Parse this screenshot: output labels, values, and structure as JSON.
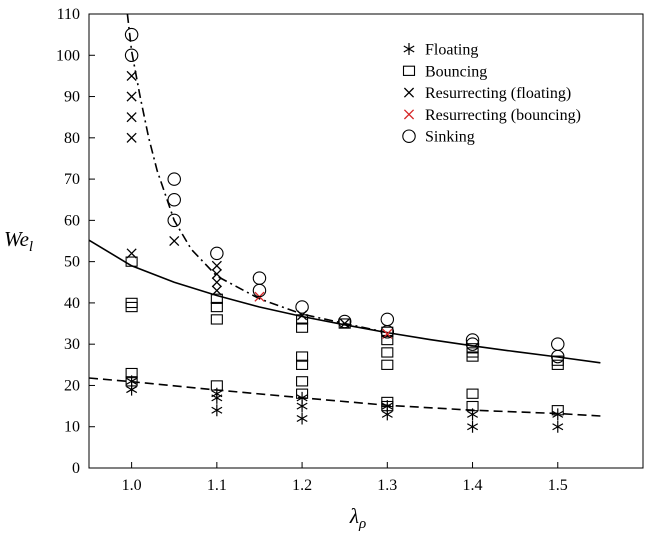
{
  "chart_data": {
    "type": "scatter",
    "xlim": [
      0.95,
      1.6
    ],
    "ylim": [
      0,
      110
    ],
    "x_ticks": [
      "1.0",
      "1.1",
      "1.2",
      "1.3",
      "1.4",
      "1.5"
    ],
    "y_ticks": [
      "0",
      "10",
      "20",
      "30",
      "40",
      "50",
      "60",
      "70",
      "80",
      "90",
      "100",
      "110"
    ],
    "xlabel": {
      "base": "λ",
      "sub": "ρ"
    },
    "ylabel": {
      "base": "We",
      "sub": "l"
    },
    "grid": false,
    "legend_position": "top-right",
    "series": [
      {
        "name": "Floating",
        "marker": "asterisk",
        "color": "#000000",
        "points": [
          [
            1.0,
            19
          ],
          [
            1.0,
            21
          ],
          [
            1.1,
            14
          ],
          [
            1.1,
            17
          ],
          [
            1.1,
            18
          ],
          [
            1.2,
            12
          ],
          [
            1.2,
            15
          ],
          [
            1.2,
            17
          ],
          [
            1.3,
            13
          ],
          [
            1.3,
            15
          ],
          [
            1.4,
            10
          ],
          [
            1.4,
            13
          ],
          [
            1.5,
            10
          ],
          [
            1.5,
            13
          ]
        ]
      },
      {
        "name": "Bouncing",
        "marker": "square",
        "color": "#000000",
        "points": [
          [
            1.0,
            21
          ],
          [
            1.0,
            23
          ],
          [
            1.0,
            39
          ],
          [
            1.0,
            40
          ],
          [
            1.0,
            50
          ],
          [
            1.1,
            20
          ],
          [
            1.1,
            36
          ],
          [
            1.1,
            39
          ],
          [
            1.1,
            41
          ],
          [
            1.2,
            18
          ],
          [
            1.2,
            21
          ],
          [
            1.2,
            25
          ],
          [
            1.2,
            27
          ],
          [
            1.2,
            34
          ],
          [
            1.2,
            36
          ],
          [
            1.25,
            35
          ],
          [
            1.3,
            15
          ],
          [
            1.3,
            16
          ],
          [
            1.3,
            25
          ],
          [
            1.3,
            28
          ],
          [
            1.3,
            31
          ],
          [
            1.3,
            33
          ],
          [
            1.4,
            15
          ],
          [
            1.4,
            18
          ],
          [
            1.4,
            27
          ],
          [
            1.4,
            28
          ],
          [
            1.4,
            29
          ],
          [
            1.5,
            14
          ],
          [
            1.5,
            25
          ],
          [
            1.5,
            26
          ]
        ]
      },
      {
        "name": "Resurrecting (floating)",
        "marker": "cross",
        "color": "#000000",
        "points": [
          [
            1.0,
            52
          ],
          [
            1.0,
            80
          ],
          [
            1.0,
            85
          ],
          [
            1.0,
            90
          ],
          [
            1.0,
            95
          ],
          [
            1.05,
            55
          ],
          [
            1.1,
            43
          ],
          [
            1.1,
            45
          ],
          [
            1.1,
            47
          ],
          [
            1.1,
            49
          ],
          [
            1.2,
            37
          ],
          [
            1.25,
            35
          ]
        ]
      },
      {
        "name": "Resurrecting (bouncing)",
        "marker": "cross",
        "color": "#d62728",
        "points": [
          [
            1.15,
            41.5
          ],
          [
            1.3,
            32.5
          ]
        ]
      },
      {
        "name": "Sinking",
        "marker": "circle",
        "color": "#000000",
        "points": [
          [
            1.0,
            100
          ],
          [
            1.0,
            105
          ],
          [
            1.05,
            60
          ],
          [
            1.05,
            65
          ],
          [
            1.05,
            70
          ],
          [
            1.1,
            52
          ],
          [
            1.15,
            43
          ],
          [
            1.15,
            46
          ],
          [
            1.2,
            39
          ],
          [
            1.25,
            35.5
          ],
          [
            1.3,
            33
          ],
          [
            1.3,
            36
          ],
          [
            1.4,
            30
          ],
          [
            1.4,
            31
          ],
          [
            1.5,
            27
          ],
          [
            1.5,
            30
          ]
        ]
      }
    ],
    "curves": [
      {
        "style": "solid",
        "x": [
          0.95,
          1.0,
          1.05,
          1.1,
          1.15,
          1.2,
          1.25,
          1.3,
          1.35,
          1.4,
          1.45,
          1.5,
          1.55
        ],
        "y": [
          55.2,
          49.0,
          45.0,
          41.8,
          39.0,
          36.7,
          34.7,
          32.8,
          31.1,
          29.6,
          28.2,
          26.9,
          25.5
        ]
      },
      {
        "style": "dashed",
        "x": [
          0.95,
          1.0,
          1.1,
          1.2,
          1.3,
          1.4,
          1.5,
          1.55
        ],
        "y": [
          21.8,
          20.9,
          18.9,
          17.0,
          15.2,
          14.0,
          13.2,
          12.6
        ]
      },
      {
        "style": "dashdot",
        "x": [
          0.995,
          1.0,
          1.01,
          1.02,
          1.03,
          1.05,
          1.07,
          1.1,
          1.15,
          1.2,
          1.25,
          1.3
        ],
        "y": [
          110,
          101,
          90,
          80,
          72,
          60,
          53,
          46.5,
          41,
          37.3,
          35,
          32.8
        ]
      }
    ]
  }
}
